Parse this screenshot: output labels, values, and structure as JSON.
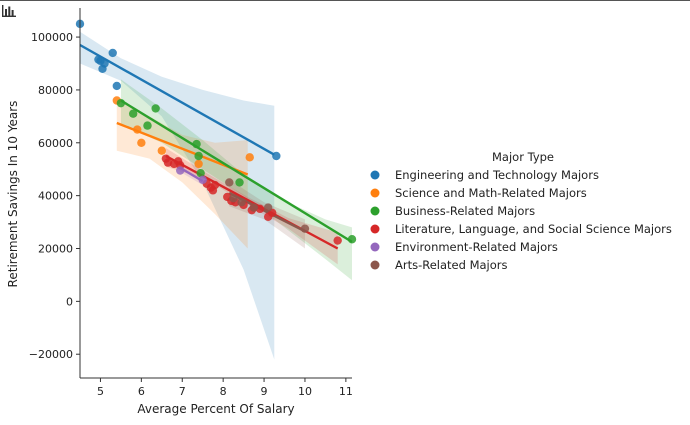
{
  "chart_data": {
    "type": "scatter",
    "subtype": "regression-scatter-with-confidence-bands",
    "xlabel": "Average Percent Of Salary",
    "ylabel": "Retirement Savings In 10 Years",
    "xlim": [
      4.5,
      11.15
    ],
    "ylim": [
      -29000,
      111000
    ],
    "xticks": [
      5,
      6,
      7,
      8,
      9,
      10,
      11
    ],
    "yticks": [
      -20000,
      0,
      20000,
      40000,
      60000,
      80000,
      100000
    ],
    "grid": false,
    "legend": {
      "title": "Major Type",
      "placement": "right-outside"
    },
    "series": [
      {
        "name": "Engineering and Technology Majors",
        "color": "#1f77b4",
        "points": [
          [
            4.5,
            105000
          ],
          [
            4.95,
            91500
          ],
          [
            5.0,
            91000
          ],
          [
            5.05,
            88000
          ],
          [
            5.1,
            90000
          ],
          [
            5.3,
            94000
          ],
          [
            5.4,
            81500
          ],
          [
            9.3,
            55000
          ]
        ],
        "fit": [
          [
            4.5,
            97000
          ],
          [
            9.25,
            55500
          ]
        ],
        "band": {
          "x": [
            4.5,
            5.5,
            6.5,
            7.5,
            8.5,
            9.25
          ],
          "lo": [
            90000,
            83500,
            70000,
            45000,
            12000,
            -22000
          ],
          "hi": [
            102000,
            92000,
            85000,
            80000,
            76000,
            74000
          ]
        }
      },
      {
        "name": "Science and Math-Related Majors",
        "color": "#ff7f0e",
        "points": [
          [
            5.4,
            76000
          ],
          [
            5.9,
            65000
          ],
          [
            6.0,
            60000
          ],
          [
            6.5,
            57000
          ],
          [
            7.4,
            52000
          ],
          [
            8.65,
            54500
          ]
        ],
        "fit": [
          [
            5.4,
            67500
          ],
          [
            8.6,
            48000
          ]
        ],
        "band": {
          "x": [
            5.4,
            6.2,
            7.0,
            7.8,
            8.6
          ],
          "lo": [
            57000,
            54000,
            45000,
            33000,
            20000
          ],
          "hi": [
            77000,
            70000,
            63000,
            60000,
            61000
          ]
        }
      },
      {
        "name": "Business-Related Majors",
        "color": "#2ca02c",
        "points": [
          [
            5.5,
            75000
          ],
          [
            5.8,
            71000
          ],
          [
            6.15,
            66500
          ],
          [
            6.35,
            73000
          ],
          [
            7.35,
            59500
          ],
          [
            7.4,
            55000
          ],
          [
            7.45,
            48500
          ],
          [
            8.4,
            45000
          ],
          [
            11.15,
            23500
          ]
        ],
        "fit": [
          [
            5.5,
            76000
          ],
          [
            11.15,
            22500
          ]
        ],
        "band": {
          "x": [
            5.5,
            6.5,
            7.5,
            8.5,
            9.5,
            10.5,
            11.15
          ],
          "lo": [
            67000,
            60000,
            50000,
            40000,
            28000,
            16000,
            8000
          ],
          "hi": [
            84000,
            73000,
            61000,
            48000,
            38000,
            31000,
            28000
          ]
        }
      },
      {
        "name": "Literature, Language, and Social Science Majors",
        "color": "#d62728",
        "points": [
          [
            6.6,
            54000
          ],
          [
            6.65,
            52500
          ],
          [
            6.8,
            52000
          ],
          [
            6.9,
            53000
          ],
          [
            6.95,
            51500
          ],
          [
            7.6,
            44500
          ],
          [
            7.7,
            43000
          ],
          [
            7.75,
            42000
          ],
          [
            7.8,
            44000
          ],
          [
            8.1,
            39500
          ],
          [
            8.2,
            38000
          ],
          [
            8.3,
            37500
          ],
          [
            8.5,
            36500
          ],
          [
            8.7,
            34500
          ],
          [
            8.75,
            35500
          ],
          [
            8.9,
            35000
          ],
          [
            9.1,
            32000
          ],
          [
            9.2,
            33500
          ],
          [
            10.8,
            23000
          ]
        ],
        "fit": [
          [
            6.6,
            55000
          ],
          [
            10.8,
            20000
          ]
        ],
        "band": {
          "x": [
            6.6,
            7.6,
            8.6,
            9.6,
            10.8
          ],
          "lo": [
            51000,
            46000,
            36500,
            27500,
            14000
          ],
          "hi": [
            58000,
            48500,
            39500,
            31500,
            26000
          ]
        }
      },
      {
        "name": "Environment-Related Majors",
        "color": "#9467bd",
        "points": [
          [
            6.95,
            49500
          ],
          [
            7.5,
            46000
          ]
        ],
        "fit": [
          [
            6.95,
            50500
          ],
          [
            7.5,
            45500
          ]
        ],
        "band": {
          "x": [
            6.95,
            7.5
          ],
          "lo": [
            49000,
            44000
          ],
          "hi": [
            52000,
            47000
          ]
        }
      },
      {
        "name": "Arts-Related Majors",
        "color": "#8c564b",
        "points": [
          [
            8.15,
            45000
          ],
          [
            8.25,
            39000
          ],
          [
            8.45,
            37500
          ],
          [
            8.75,
            35500
          ],
          [
            9.1,
            35500
          ],
          [
            10.0,
            27500
          ]
        ],
        "fit": [
          [
            8.15,
            41000
          ],
          [
            10.0,
            26500
          ]
        ],
        "band": {
          "x": [
            8.15,
            9.0,
            10.0
          ],
          "lo": [
            36000,
            31000,
            20000
          ],
          "hi": [
            46000,
            37500,
            31000
          ]
        }
      }
    ]
  }
}
